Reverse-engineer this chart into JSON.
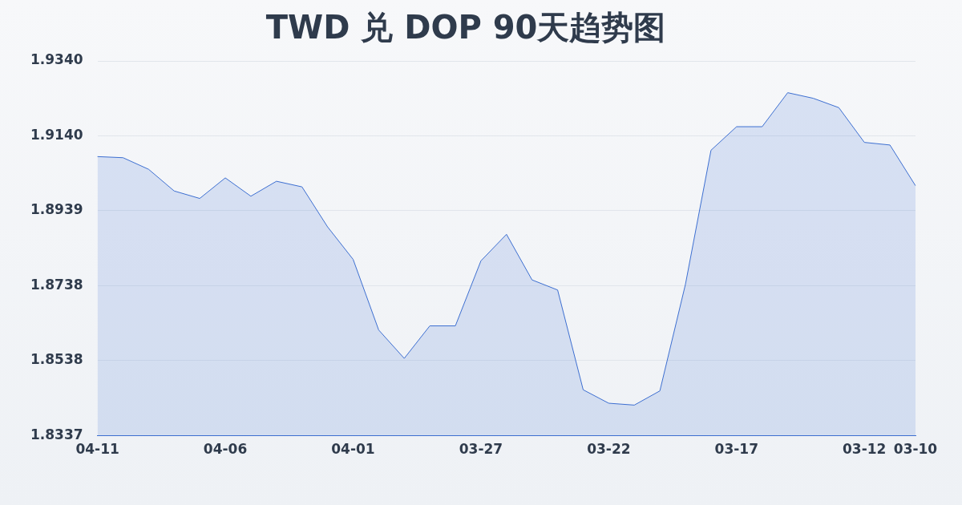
{
  "chart_data": {
    "type": "area",
    "title": "TWD 兑 DOP 90天趋势图",
    "categories": [
      "04-11",
      null,
      null,
      null,
      null,
      "04-06",
      null,
      null,
      null,
      null,
      "04-01",
      null,
      null,
      null,
      null,
      "03-27",
      null,
      null,
      null,
      null,
      "03-22",
      null,
      null,
      null,
      null,
      "03-17",
      null,
      null,
      null,
      null,
      "03-12",
      null,
      "03-10"
    ],
    "series": [
      {
        "color": "#3d6fd1",
        "values": [
          1.9084,
          1.9081,
          1.905,
          1.8992,
          1.8972,
          1.9027,
          1.8978,
          1.9018,
          1.9003,
          1.8896,
          1.8809,
          1.862,
          1.8544,
          1.8631,
          1.8631,
          1.8805,
          1.8876,
          1.8754,
          1.8727,
          1.846,
          1.8424,
          1.8419,
          1.8457,
          1.8742,
          1.9101,
          1.9164,
          1.9164,
          1.9255,
          1.924,
          1.9215,
          1.9122,
          1.9115,
          1.9006
        ]
      }
    ],
    "ylim": [
      1.8337,
      1.934
    ],
    "yticks": [
      {
        "value": 1.8337,
        "label": "1.8337"
      },
      {
        "value": 1.8538,
        "label": "1.8538"
      },
      {
        "value": 1.8738,
        "label": "1.8738"
      },
      {
        "value": 1.8939,
        "label": "1.8939"
      },
      {
        "value": 1.914,
        "label": "1.9140"
      },
      {
        "value": 1.934,
        "label": "1.9340"
      }
    ],
    "grid": "y",
    "legend": false,
    "marker": "none",
    "line_style": "solid"
  }
}
